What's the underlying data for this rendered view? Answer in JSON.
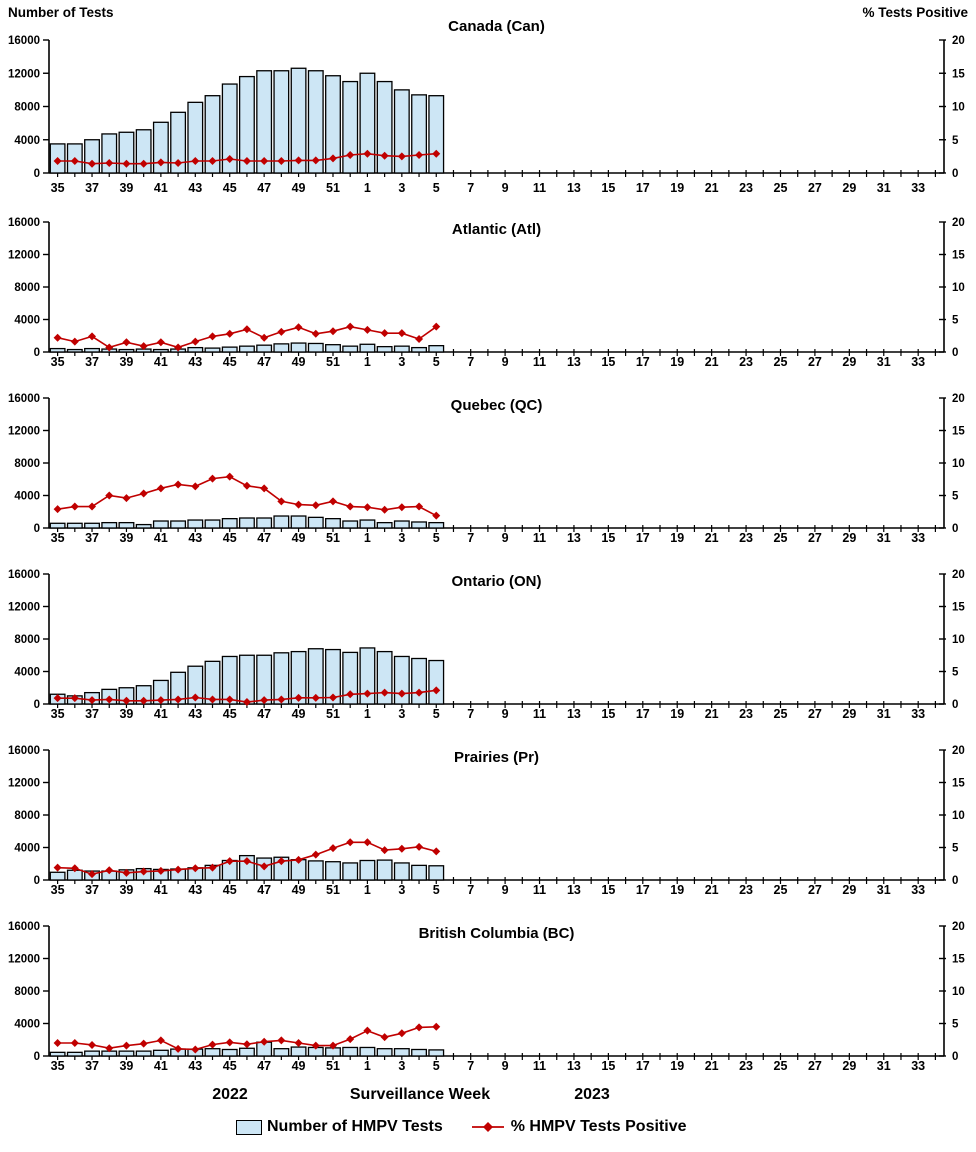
{
  "figure": {
    "left_axis_label": "Number of Tests",
    "right_axis_label": "% Tests Positive",
    "x_axis_label": "Surveillance Week",
    "year_left": "2022",
    "year_right": "2023",
    "legend": {
      "tests_label": "Number of HMPV Tests",
      "pct_label": "% HMPV Tests Positive"
    },
    "colors": {
      "bar_fill": "#CDE6F5",
      "bar_stroke": "#000000",
      "line_color": "#C00000",
      "text_color": "#000000"
    }
  },
  "chart_data": {
    "type": "bar",
    "layout": "6 stacked combo panels (bars = number of tests on left axis, line = % positive on right axis) sharing one x-axis of surveillance weeks 35/2022 through 34/2023",
    "x_categories": [
      35,
      36,
      37,
      38,
      39,
      40,
      41,
      42,
      43,
      44,
      45,
      46,
      47,
      48,
      49,
      50,
      51,
      52,
      1,
      2,
      3,
      4,
      5,
      6,
      7,
      8,
      9,
      10,
      11,
      12,
      13,
      14,
      15,
      16,
      17,
      18,
      19,
      20,
      21,
      22,
      23,
      24,
      25,
      26,
      27,
      28,
      29,
      30,
      31,
      32,
      33,
      34
    ],
    "x_labeled_categories": [
      35,
      37,
      39,
      41,
      43,
      45,
      47,
      49,
      51,
      1,
      3,
      5,
      7,
      9,
      11,
      13,
      15,
      17,
      19,
      21,
      23,
      25,
      27,
      29,
      31,
      33
    ],
    "weeks_reported": [
      35,
      36,
      37,
      38,
      39,
      40,
      41,
      42,
      43,
      44,
      45,
      46,
      47,
      48,
      49,
      50,
      51,
      52,
      1,
      2,
      3,
      4,
      5
    ],
    "ylim_left": [
      0,
      16000
    ],
    "yticks_left": [
      0,
      4000,
      8000,
      12000,
      16000
    ],
    "ylim_right": [
      0,
      20
    ],
    "yticks_right": [
      0,
      5,
      10,
      15,
      20
    ],
    "grid": false,
    "panels": [
      {
        "title": "Canada (Can)",
        "slug": "canada-can",
        "tests": [
          3500,
          3500,
          4000,
          4700,
          4900,
          5200,
          6100,
          7300,
          8500,
          9300,
          10700,
          11600,
          12300,
          12300,
          12600,
          12300,
          11700,
          11000,
          12000,
          11000,
          10000,
          9400,
          9300
        ],
        "pct_positive": [
          1.8,
          1.8,
          1.4,
          1.5,
          1.4,
          1.4,
          1.6,
          1.5,
          1.8,
          1.8,
          2.1,
          1.8,
          1.8,
          1.8,
          1.9,
          1.9,
          2.2,
          2.7,
          2.9,
          2.6,
          2.5,
          2.7,
          2.9
        ]
      },
      {
        "title": "Atlantic (Atl)",
        "slug": "atlantic-atl",
        "tests": [
          420,
          300,
          420,
          360,
          300,
          360,
          300,
          360,
          540,
          480,
          600,
          720,
          840,
          1000,
          1100,
          1050,
          900,
          720,
          950,
          660,
          720,
          540,
          780
        ],
        "pct_positive": [
          2.2,
          1.6,
          2.4,
          0.7,
          1.5,
          0.9,
          1.5,
          0.7,
          1.6,
          2.4,
          2.8,
          3.5,
          2.2,
          3.1,
          3.8,
          2.8,
          3.2,
          3.9,
          3.4,
          2.9,
          2.9,
          2.0,
          3.9
        ]
      },
      {
        "title": "Quebec (QC)",
        "slug": "quebec-qc",
        "tests": [
          580,
          580,
          580,
          660,
          660,
          420,
          860,
          860,
          980,
          980,
          1150,
          1230,
          1230,
          1475,
          1475,
          1310,
          1150,
          860,
          980,
          660,
          860,
          740,
          660
        ],
        "pct_positive": [
          2.9,
          3.3,
          3.3,
          5.0,
          4.6,
          5.3,
          6.1,
          6.7,
          6.4,
          7.6,
          7.9,
          6.5,
          6.1,
          4.1,
          3.6,
          3.5,
          4.1,
          3.3,
          3.2,
          2.8,
          3.2,
          3.3,
          1.9
        ]
      },
      {
        "title": "Ontario (ON)",
        "slug": "ontario-on",
        "tests": [
          1200,
          1000,
          1400,
          1800,
          2000,
          2250,
          2900,
          3900,
          4650,
          5250,
          5850,
          6000,
          6000,
          6300,
          6450,
          6800,
          6700,
          6350,
          6900,
          6450,
          5850,
          5600,
          5350
        ],
        "pct_positive": [
          0.9,
          0.9,
          0.6,
          0.7,
          0.5,
          0.5,
          0.6,
          0.7,
          1.0,
          0.7,
          0.7,
          0.3,
          0.6,
          0.7,
          0.95,
          0.95,
          1.0,
          1.5,
          1.6,
          1.75,
          1.6,
          1.75,
          2.1
        ]
      },
      {
        "title": "Prairies (Pr)",
        "slug": "prairies-pr",
        "tests": [
          950,
          1200,
          1100,
          1100,
          1250,
          1400,
          1300,
          1350,
          1500,
          1800,
          2400,
          3000,
          2700,
          2800,
          2500,
          2350,
          2250,
          2100,
          2400,
          2450,
          2100,
          1800,
          1750
        ],
        "pct_positive": [
          1.9,
          1.8,
          0.9,
          1.5,
          1.1,
          1.3,
          1.4,
          1.6,
          1.8,
          1.9,
          2.9,
          2.9,
          2.1,
          2.9,
          3.1,
          3.9,
          4.9,
          5.8,
          5.8,
          4.6,
          4.8,
          5.1,
          4.4
        ]
      },
      {
        "title": "British Columbia (BC)",
        "slug": "british-columbia-bc",
        "tests": [
          450,
          450,
          600,
          600,
          600,
          600,
          700,
          850,
          850,
          900,
          800,
          950,
          1700,
          900,
          1100,
          1050,
          1000,
          1050,
          1050,
          900,
          900,
          800,
          750
        ],
        "pct_positive": [
          2.0,
          2.0,
          1.7,
          1.2,
          1.6,
          1.9,
          2.4,
          1.1,
          1.0,
          1.75,
          2.1,
          1.8,
          2.2,
          2.4,
          2.0,
          1.6,
          1.6,
          2.6,
          3.9,
          2.9,
          3.5,
          4.4,
          4.5
        ]
      }
    ]
  }
}
